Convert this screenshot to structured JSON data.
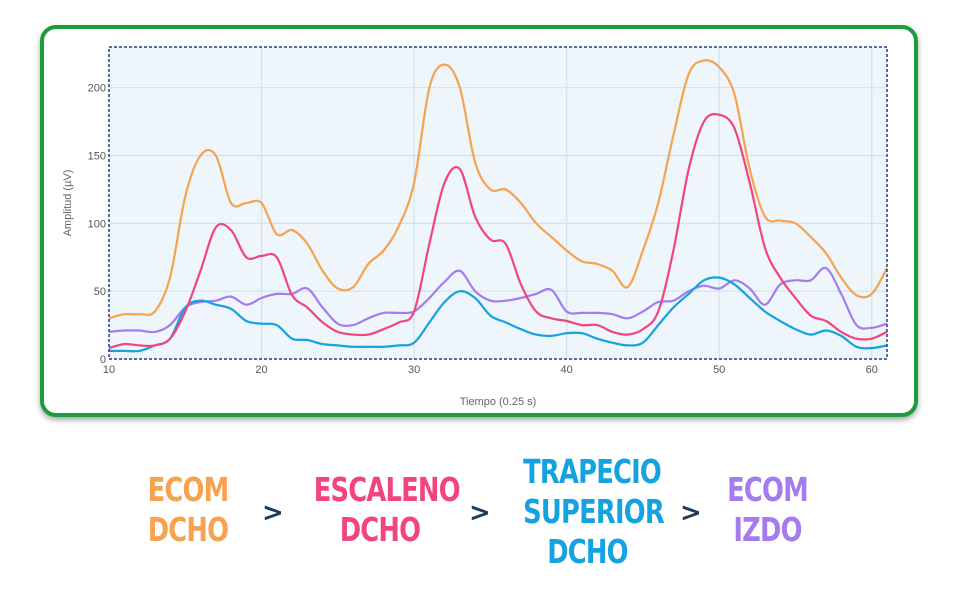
{
  "chart_data": {
    "type": "line",
    "xlabel": "Tiempo (0.25 s)",
    "ylabel": "Amplitud (µV)",
    "xlim": [
      10,
      61
    ],
    "ylim": [
      0,
      230
    ],
    "xticks": [
      10,
      20,
      30,
      40,
      50,
      60
    ],
    "yticks": [
      0,
      50,
      100,
      150,
      200
    ],
    "grid": true,
    "x": [
      10,
      11,
      12,
      13,
      14,
      15,
      16,
      17,
      18,
      19,
      20,
      21,
      22,
      23,
      24,
      25,
      26,
      27,
      28,
      29,
      30,
      31,
      32,
      33,
      34,
      35,
      36,
      37,
      38,
      39,
      40,
      41,
      42,
      43,
      44,
      45,
      46,
      47,
      48,
      49,
      50,
      51,
      52,
      53,
      54,
      55,
      56,
      57,
      58,
      59,
      60,
      61
    ],
    "series": [
      {
        "name": "ECOM DCHO",
        "color": "#f7a24f",
        "values": [
          30,
          33,
          33,
          35,
          60,
          120,
          150,
          150,
          115,
          115,
          115,
          92,
          95,
          85,
          65,
          52,
          53,
          70,
          80,
          98,
          130,
          200,
          217,
          200,
          145,
          125,
          125,
          115,
          100,
          90,
          80,
          72,
          70,
          65,
          53,
          80,
          115,
          165,
          210,
          220,
          215,
          195,
          140,
          105,
          102,
          100,
          90,
          78,
          60,
          47,
          48,
          67
        ]
      },
      {
        "name": "ESCALENO DCHO",
        "color": "#f0457e",
        "values": [
          8,
          11,
          10,
          10,
          15,
          35,
          65,
          97,
          95,
          75,
          76,
          75,
          47,
          38,
          27,
          20,
          18,
          18,
          22,
          27,
          35,
          85,
          130,
          140,
          105,
          88,
          85,
          55,
          35,
          30,
          28,
          25,
          25,
          20,
          18,
          22,
          35,
          80,
          140,
          175,
          180,
          170,
          130,
          82,
          60,
          45,
          32,
          28,
          20,
          15,
          15,
          20
        ]
      },
      {
        "name": "TRAPECIO SUPERIOR DCHO",
        "color": "#15a2e0",
        "values": [
          6,
          6,
          6,
          10,
          15,
          38,
          43,
          40,
          37,
          28,
          26,
          25,
          15,
          14,
          11,
          10,
          9,
          9,
          9,
          10,
          12,
          27,
          42,
          50,
          45,
          32,
          27,
          22,
          18,
          17,
          19,
          19,
          15,
          12,
          10,
          12,
          25,
          38,
          48,
          58,
          60,
          55,
          45,
          35,
          28,
          22,
          18,
          21,
          17,
          9,
          8,
          10
        ]
      },
      {
        "name": "ECOM IZDO",
        "color": "#a57cef",
        "values": [
          20,
          21,
          21,
          20,
          25,
          38,
          42,
          43,
          46,
          40,
          45,
          48,
          48,
          52,
          38,
          26,
          25,
          30,
          34,
          34,
          35,
          45,
          57,
          65,
          50,
          43,
          43,
          45,
          48,
          51,
          35,
          34,
          34,
          33,
          30,
          35,
          42,
          43,
          50,
          54,
          52,
          58,
          52,
          40,
          55,
          58,
          58,
          67,
          48,
          25,
          23,
          26
        ]
      }
    ]
  },
  "legend_labels": [
    {
      "lines": [
        "ECOM",
        "DCHO"
      ],
      "color": "#f7a24f"
    },
    {
      "lines": [
        "ESCALENO",
        "DCHO"
      ],
      "color": "#f0457e"
    },
    {
      "lines": [
        "TRAPECIO",
        "SUPERIOR",
        "DCHO"
      ],
      "color": "#15a2e0"
    },
    {
      "lines": [
        "ECOM",
        "IZDO"
      ],
      "color": "#a57cef"
    }
  ],
  "separator": ">"
}
